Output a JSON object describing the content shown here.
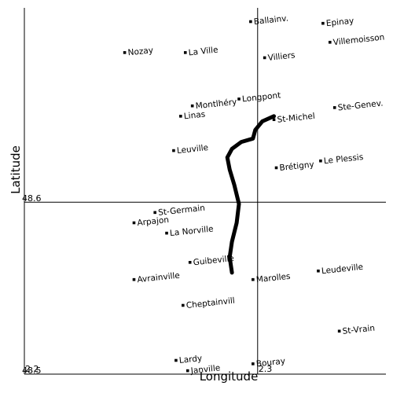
{
  "chart_data": {
    "type": "scatter",
    "xlabel": "Longitude",
    "ylabel": "Latitude",
    "xlim": [
      2.2,
      2.355
    ],
    "ylim": [
      48.5,
      48.713
    ],
    "x_ticks": [
      {
        "value": 2.2,
        "label": "2.2"
      },
      {
        "value": 2.3,
        "label": "2.3"
      }
    ],
    "y_ticks": [
      {
        "value": 48.5,
        "label": "48.5"
      },
      {
        "value": 48.6,
        "label": "48.6"
      }
    ],
    "reference_lines": {
      "x": 2.3,
      "y": 48.6
    },
    "places": [
      {
        "name": "Ballainv.",
        "lon": 2.297,
        "lat": 48.705
      },
      {
        "name": "Epinay",
        "lon": 2.328,
        "lat": 48.704
      },
      {
        "name": "Villemoisson",
        "lon": 2.331,
        "lat": 48.693
      },
      {
        "name": "Nozay",
        "lon": 2.243,
        "lat": 48.687
      },
      {
        "name": "La Ville",
        "lon": 2.269,
        "lat": 48.687
      },
      {
        "name": "Villiers",
        "lon": 2.303,
        "lat": 48.684
      },
      {
        "name": "Longpont",
        "lon": 2.292,
        "lat": 48.66
      },
      {
        "name": "Montlhéry",
        "lon": 2.272,
        "lat": 48.656
      },
      {
        "name": "Ste-Genev.",
        "lon": 2.333,
        "lat": 48.655
      },
      {
        "name": "Linas",
        "lon": 2.267,
        "lat": 48.65
      },
      {
        "name": "St-Michel",
        "lon": 2.307,
        "lat": 48.648
      },
      {
        "name": "Leuville",
        "lon": 2.264,
        "lat": 48.63
      },
      {
        "name": "Le Plessis",
        "lon": 2.327,
        "lat": 48.624
      },
      {
        "name": "Brétigny",
        "lon": 2.308,
        "lat": 48.62
      },
      {
        "name": "St-Germain",
        "lon": 2.256,
        "lat": 48.594
      },
      {
        "name": "Arpajon",
        "lon": 2.247,
        "lat": 48.588
      },
      {
        "name": "La Norville",
        "lon": 2.261,
        "lat": 48.582
      },
      {
        "name": "Guibeville",
        "lon": 2.271,
        "lat": 48.565
      },
      {
        "name": "Marolles",
        "lon": 2.298,
        "lat": 48.555
      },
      {
        "name": "Leudeville",
        "lon": 2.326,
        "lat": 48.56
      },
      {
        "name": "Avrainville",
        "lon": 2.247,
        "lat": 48.555
      },
      {
        "name": "Cheptainvill",
        "lon": 2.268,
        "lat": 48.54
      },
      {
        "name": "St-Vrain",
        "lon": 2.335,
        "lat": 48.525
      },
      {
        "name": "Lardy",
        "lon": 2.265,
        "lat": 48.508
      },
      {
        "name": "Janville",
        "lon": 2.27,
        "lat": 48.502
      },
      {
        "name": "Bouray",
        "lon": 2.298,
        "lat": 48.506
      }
    ],
    "route": [
      {
        "lon": 2.307,
        "lat": 48.65
      },
      {
        "lon": 2.302,
        "lat": 48.647
      },
      {
        "lon": 2.299,
        "lat": 48.642
      },
      {
        "lon": 2.298,
        "lat": 48.637
      },
      {
        "lon": 2.293,
        "lat": 48.635
      },
      {
        "lon": 2.289,
        "lat": 48.631
      },
      {
        "lon": 2.287,
        "lat": 48.626
      },
      {
        "lon": 2.288,
        "lat": 48.619
      },
      {
        "lon": 2.29,
        "lat": 48.61
      },
      {
        "lon": 2.292,
        "lat": 48.599
      },
      {
        "lon": 2.291,
        "lat": 48.588
      },
      {
        "lon": 2.289,
        "lat": 48.577
      },
      {
        "lon": 2.288,
        "lat": 48.568
      },
      {
        "lon": 2.289,
        "lat": 48.559
      }
    ]
  }
}
